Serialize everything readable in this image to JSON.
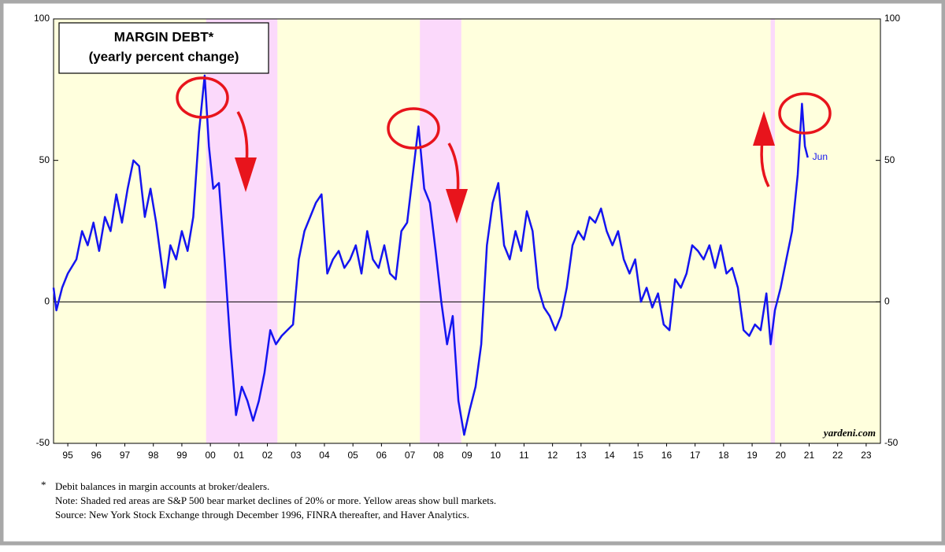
{
  "chart_data": {
    "type": "line",
    "title": "MARGIN DEBT*",
    "subtitle": "(yearly percent change)",
    "watermark": "yardeni.com",
    "end_label": "Jun",
    "footnotes": [
      "*",
      "Debit balances in margin accounts at broker/dealers.",
      "Note: Shaded red areas are S&P 500 bear market declines of 20% or more. Yellow areas show bull markets.",
      "Source: New York Stock Exchange through December 1996, FINRA thereafter, and Haver Analytics."
    ],
    "background_color": "#ffffdd",
    "bear_market_color": "#fbd9fb",
    "bear_markets": [
      [
        2000.35,
        2002.85
      ],
      [
        2007.85,
        2009.3
      ],
      [
        2020.15,
        2020.3
      ]
    ],
    "x": [
      1995.0,
      1995.1,
      1995.3,
      1995.5,
      1995.8,
      1996.0,
      1996.2,
      1996.4,
      1996.6,
      1996.8,
      1997.0,
      1997.2,
      1997.4,
      1997.6,
      1997.8,
      1998.0,
      1998.2,
      1998.4,
      1998.6,
      1998.9,
      1999.1,
      1999.3,
      1999.5,
      1999.7,
      1999.9,
      2000.1,
      2000.3,
      2000.45,
      2000.6,
      2000.8,
      2001.0,
      2001.2,
      2001.4,
      2001.6,
      2001.8,
      2002.0,
      2002.2,
      2002.4,
      2002.6,
      2002.8,
      2003.0,
      2003.2,
      2003.4,
      2003.6,
      2003.8,
      2004.0,
      2004.2,
      2004.4,
      2004.6,
      2004.8,
      2005.0,
      2005.2,
      2005.4,
      2005.6,
      2005.8,
      2006.0,
      2006.2,
      2006.4,
      2006.6,
      2006.8,
      2007.0,
      2007.2,
      2007.4,
      2007.6,
      2007.8,
      2008.0,
      2008.2,
      2008.4,
      2008.6,
      2008.8,
      2009.0,
      2009.2,
      2009.4,
      2009.6,
      2009.8,
      2010.0,
      2010.2,
      2010.4,
      2010.6,
      2010.8,
      2011.0,
      2011.2,
      2011.4,
      2011.6,
      2011.8,
      2012.0,
      2012.2,
      2012.4,
      2012.6,
      2012.8,
      2013.0,
      2013.2,
      2013.4,
      2013.6,
      2013.8,
      2014.0,
      2014.2,
      2014.4,
      2014.6,
      2014.8,
      2015.0,
      2015.2,
      2015.4,
      2015.6,
      2015.8,
      2016.0,
      2016.2,
      2016.4,
      2016.6,
      2016.8,
      2017.0,
      2017.2,
      2017.4,
      2017.6,
      2017.8,
      2018.0,
      2018.2,
      2018.4,
      2018.6,
      2018.8,
      2019.0,
      2019.2,
      2019.4,
      2019.6,
      2019.8,
      2020.0,
      2020.15,
      2020.3,
      2020.5,
      2020.7,
      2020.9,
      2021.1,
      2021.25,
      2021.35,
      2021.45
    ],
    "series": [
      {
        "color": "#1414f0",
        "values": [
          5,
          -3,
          5,
          10,
          15,
          25,
          20,
          28,
          18,
          30,
          25,
          38,
          28,
          40,
          50,
          48,
          30,
          40,
          28,
          5,
          20,
          15,
          25,
          18,
          30,
          60,
          80,
          55,
          40,
          42,
          15,
          -15,
          -40,
          -30,
          -35,
          -42,
          -35,
          -25,
          -10,
          -15,
          -12,
          -10,
          -8,
          15,
          25,
          30,
          35,
          38,
          10,
          15,
          18,
          12,
          15,
          20,
          10,
          25,
          15,
          12,
          20,
          10,
          8,
          25,
          28,
          45,
          62,
          40,
          35,
          18,
          0,
          -15,
          -5,
          -35,
          -47,
          -38,
          -30,
          -15,
          20,
          35,
          42,
          20,
          15,
          25,
          18,
          32,
          25,
          5,
          -2,
          -5,
          -10,
          -5,
          5,
          20,
          25,
          22,
          30,
          28,
          33,
          25,
          20,
          25,
          15,
          10,
          15,
          0,
          5,
          -2,
          3,
          -8,
          -10,
          8,
          5,
          10,
          20,
          18,
          15,
          20,
          12,
          20,
          10,
          12,
          5,
          -10,
          -12,
          -8,
          -10,
          3,
          -15,
          -3,
          5,
          15,
          25,
          45,
          70,
          55,
          51
        ]
      }
    ],
    "xlim": [
      1995,
      2024
    ],
    "xticks": [
      {
        "value": 1995.5,
        "label": "95"
      },
      {
        "value": 1996.5,
        "label": "96"
      },
      {
        "value": 1997.5,
        "label": "97"
      },
      {
        "value": 1998.5,
        "label": "98"
      },
      {
        "value": 1999.5,
        "label": "99"
      },
      {
        "value": 2000.5,
        "label": "00"
      },
      {
        "value": 2001.5,
        "label": "01"
      },
      {
        "value": 2002.5,
        "label": "02"
      },
      {
        "value": 2003.5,
        "label": "03"
      },
      {
        "value": 2004.5,
        "label": "04"
      },
      {
        "value": 2005.5,
        "label": "05"
      },
      {
        "value": 2006.5,
        "label": "06"
      },
      {
        "value": 2007.5,
        "label": "07"
      },
      {
        "value": 2008.5,
        "label": "08"
      },
      {
        "value": 2009.5,
        "label": "09"
      },
      {
        "value": 2010.5,
        "label": "10"
      },
      {
        "value": 2011.5,
        "label": "11"
      },
      {
        "value": 2012.5,
        "label": "12"
      },
      {
        "value": 2013.5,
        "label": "13"
      },
      {
        "value": 2014.5,
        "label": "14"
      },
      {
        "value": 2015.5,
        "label": "15"
      },
      {
        "value": 2016.5,
        "label": "16"
      },
      {
        "value": 2017.5,
        "label": "17"
      },
      {
        "value": 2018.5,
        "label": "18"
      },
      {
        "value": 2019.5,
        "label": "19"
      },
      {
        "value": 2020.5,
        "label": "20"
      },
      {
        "value": 2021.5,
        "label": "21"
      },
      {
        "value": 2022.5,
        "label": "22"
      },
      {
        "value": 2023.5,
        "label": "23"
      }
    ],
    "ylim": [
      -50,
      100
    ],
    "yticks": [
      -50,
      0,
      50,
      100
    ]
  }
}
